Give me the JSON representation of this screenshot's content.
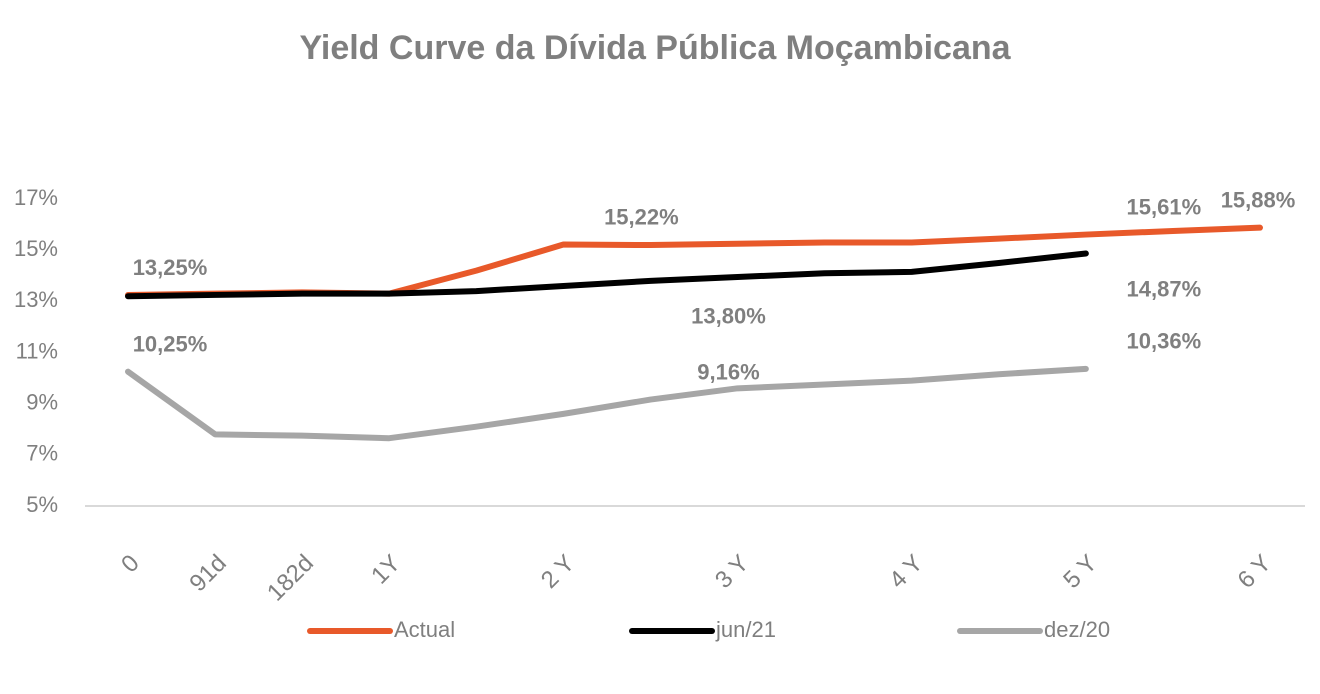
{
  "chart_data": {
    "type": "line",
    "title": "Yield Curve da Dívida Pública Moçambicana",
    "categories": [
      "0",
      "91d",
      "182d",
      "1Y",
      null,
      "2 Y",
      null,
      "3 Y",
      null,
      "4 Y",
      null,
      "5 Y",
      null,
      "6 Y"
    ],
    "series": [
      {
        "name": "Actual",
        "color": "#e8592a",
        "values": [
          13.25,
          13.3,
          13.35,
          13.3,
          14.2,
          15.22,
          15.2,
          15.25,
          15.3,
          15.3,
          15.45,
          15.61,
          15.75,
          15.88
        ],
        "value_labels": [
          "13,25%",
          null,
          null,
          null,
          null,
          "15,22%",
          null,
          null,
          null,
          null,
          null,
          "15,61%",
          null,
          "15,88%"
        ]
      },
      {
        "name": "jun/21",
        "color": "#000000",
        "values": [
          13.2,
          13.25,
          13.3,
          13.3,
          13.4,
          13.6,
          13.8,
          13.95,
          14.1,
          14.15,
          14.5,
          14.87,
          null,
          null
        ],
        "value_labels": [
          null,
          null,
          null,
          null,
          null,
          null,
          "13,80%",
          null,
          null,
          null,
          null,
          "14,87%",
          null,
          null
        ]
      },
      {
        "name": "dez/20",
        "color": "#a6a6a6",
        "values": [
          10.25,
          7.8,
          7.75,
          7.65,
          8.1,
          8.6,
          9.16,
          9.6,
          9.75,
          9.9,
          10.15,
          10.36,
          null,
          null
        ],
        "value_labels": [
          "10,25%",
          null,
          null,
          null,
          null,
          null,
          "9,16%",
          null,
          null,
          null,
          null,
          "10,36%",
          null,
          null
        ]
      }
    ],
    "ylim": [
      5,
      17
    ],
    "yticks": [
      {
        "value": 5,
        "label": "5%"
      },
      {
        "value": 7,
        "label": "7%"
      },
      {
        "value": 9,
        "label": "9%"
      },
      {
        "value": 11,
        "label": "11%"
      },
      {
        "value": 13,
        "label": "13%"
      },
      {
        "value": 15,
        "label": "15%"
      },
      {
        "value": 17,
        "label": "17%"
      }
    ],
    "grid": false,
    "legend": "bottom"
  }
}
